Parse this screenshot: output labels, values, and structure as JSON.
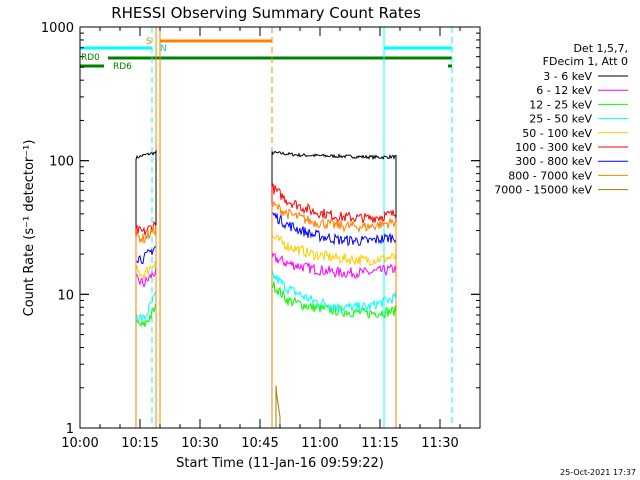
{
  "chart_data": {
    "type": "line",
    "title": "RHESSI Observing Summary Count Rates",
    "xlabel": "Start Time (11-Jan-16 09:59:22)",
    "ylabel": "Count Rate (s⁻¹ detector⁻¹)",
    "yscale": "log",
    "ylim": [
      1,
      1000
    ],
    "xlim": [
      "10:00",
      "11:40"
    ],
    "grid": false,
    "x_tick_labels": [
      "10:00",
      "10:15",
      "10:30",
      "10:45",
      "11:00",
      "11:15",
      "11:30"
    ],
    "y_tick_labels": [
      "1",
      "10",
      "100",
      "1000"
    ],
    "legend_header": [
      "Det 1,5,7,",
      "FDecim 1, Att 0"
    ],
    "legend_position": "right",
    "timestamp": "25-Oct-2021 17:37",
    "flag_labels": {
      "saa": "S",
      "night": "N",
      "rd0": "RD0",
      "rd6": "RD6"
    },
    "colors": {
      "night": "#00ffff",
      "saa": "#ff8000",
      "rd": "#008000"
    },
    "series": [
      {
        "name": "3 - 6 keV",
        "color": "#000000",
        "segments": [
          {
            "x": [
              "10:14",
              "10:16",
              "10:19"
            ],
            "y": [
              105,
              110,
              115
            ]
          },
          {
            "x": [
              "10:48",
              "10:55",
              "11:05",
              "11:15",
              "11:19"
            ],
            "y": [
              115,
              110,
              108,
              106,
              107
            ]
          }
        ]
      },
      {
        "name": "6 - 12 keV",
        "color": "#ff00ff",
        "segments": [
          {
            "x": [
              "10:14",
              "10:16",
              "10:19"
            ],
            "y": [
              13,
              12,
              15
            ]
          },
          {
            "x": [
              "10:48",
              "10:52",
              "10:58",
              "11:05",
              "11:12",
              "11:19"
            ],
            "y": [
              19,
              17,
              15.5,
              14.5,
              14.5,
              15.5
            ]
          }
        ]
      },
      {
        "name": "12 - 25 keV",
        "color": "#00ff00",
        "segments": [
          {
            "x": [
              "10:14",
              "10:16",
              "10:19"
            ],
            "y": [
              6,
              5.8,
              8
            ]
          },
          {
            "x": [
              "10:48",
              "10:52",
              "10:58",
              "11:05",
              "11:12",
              "11:19"
            ],
            "y": [
              12,
              9,
              8,
              7.5,
              7.2,
              7.5
            ]
          }
        ]
      },
      {
        "name": "25 - 50 keV",
        "color": "#00ffff",
        "segments": [
          {
            "x": [
              "10:14",
              "10:16",
              "10:19"
            ],
            "y": [
              7,
              6.5,
              10
            ]
          },
          {
            "x": [
              "10:48",
              "10:52",
              "10:58",
              "11:05",
              "11:12",
              "11:19"
            ],
            "y": [
              14,
              11,
              9,
              8,
              8,
              9.5
            ]
          }
        ]
      },
      {
        "name": "50 - 100 keV",
        "color": "#ffcc00",
        "segments": [
          {
            "x": [
              "10:14",
              "10:16",
              "10:19"
            ],
            "y": [
              15,
              14,
              18
            ]
          },
          {
            "x": [
              "10:48",
              "10:52",
              "10:58",
              "11:05",
              "11:12",
              "11:19"
            ],
            "y": [
              27,
              23,
              20,
              18.5,
              18,
              19
            ]
          }
        ]
      },
      {
        "name": "100 - 300 keV",
        "color": "#ff0000",
        "segments": [
          {
            "x": [
              "10:14",
              "10:16",
              "10:19"
            ],
            "y": [
              30,
              29,
              34
            ]
          },
          {
            "x": [
              "10:48",
              "10:52",
              "10:58",
              "11:05",
              "11:12",
              "11:19"
            ],
            "y": [
              63,
              50,
              42,
              38,
              37,
              40
            ]
          }
        ]
      },
      {
        "name": "300 - 800 keV",
        "color": "#0000ff",
        "segments": [
          {
            "x": [
              "10:14",
              "10:16",
              "10:19"
            ],
            "y": [
              19,
              18.5,
              23
            ]
          },
          {
            "x": [
              "10:48",
              "10:52",
              "10:58",
              "11:05",
              "11:12",
              "11:19"
            ],
            "y": [
              40,
              33,
              28,
              25.5,
              25,
              27
            ]
          }
        ]
      },
      {
        "name": "800 - 7000 keV",
        "color": "#ff8000",
        "segments": [
          {
            "x": [
              "10:14",
              "10:16",
              "10:19"
            ],
            "y": [
              27,
              26,
              31
            ]
          },
          {
            "x": [
              "10:48",
              "10:52",
              "10:58",
              "11:05",
              "11:12",
              "11:19"
            ],
            "y": [
              47,
              40,
              35,
              32.5,
              32,
              35
            ]
          }
        ]
      },
      {
        "name": "7000 - 15000 keV",
        "color": "#a08000",
        "segments": [
          {
            "x": [
              "10:49",
              "10:50"
            ],
            "y": [
              1.9,
              1.3
            ]
          }
        ]
      }
    ],
    "vertical_lines": [
      {
        "x": "10:00",
        "color": "#00ffff",
        "style": "solid"
      },
      {
        "x": "10:18",
        "color": "#00ffff",
        "style": "dashed"
      },
      {
        "x": "10:19",
        "color": "#ff8000",
        "style": "solid"
      },
      {
        "x": "10:20",
        "color": "#ff8000",
        "style": "solid"
      },
      {
        "x": "10:48",
        "color": "#ff8000",
        "style": "dashed"
      },
      {
        "x": "11:16",
        "color": "#00ffff",
        "style": "solid"
      },
      {
        "x": "11:33",
        "color": "#00ffff",
        "style": "dashed"
      }
    ],
    "flag_bars": {
      "night": [
        {
          "from": "10:00",
          "to": "10:18"
        },
        {
          "from": "11:16",
          "to": "11:33"
        }
      ],
      "saa": [
        {
          "from": "10:20",
          "to": "10:48"
        }
      ],
      "rd0": [
        {
          "from": "10:07",
          "to": "11:33"
        }
      ],
      "rd6": [
        {
          "from": "10:00",
          "to": "10:06"
        },
        {
          "from": "11:32",
          "to": "11:33"
        }
      ]
    }
  }
}
